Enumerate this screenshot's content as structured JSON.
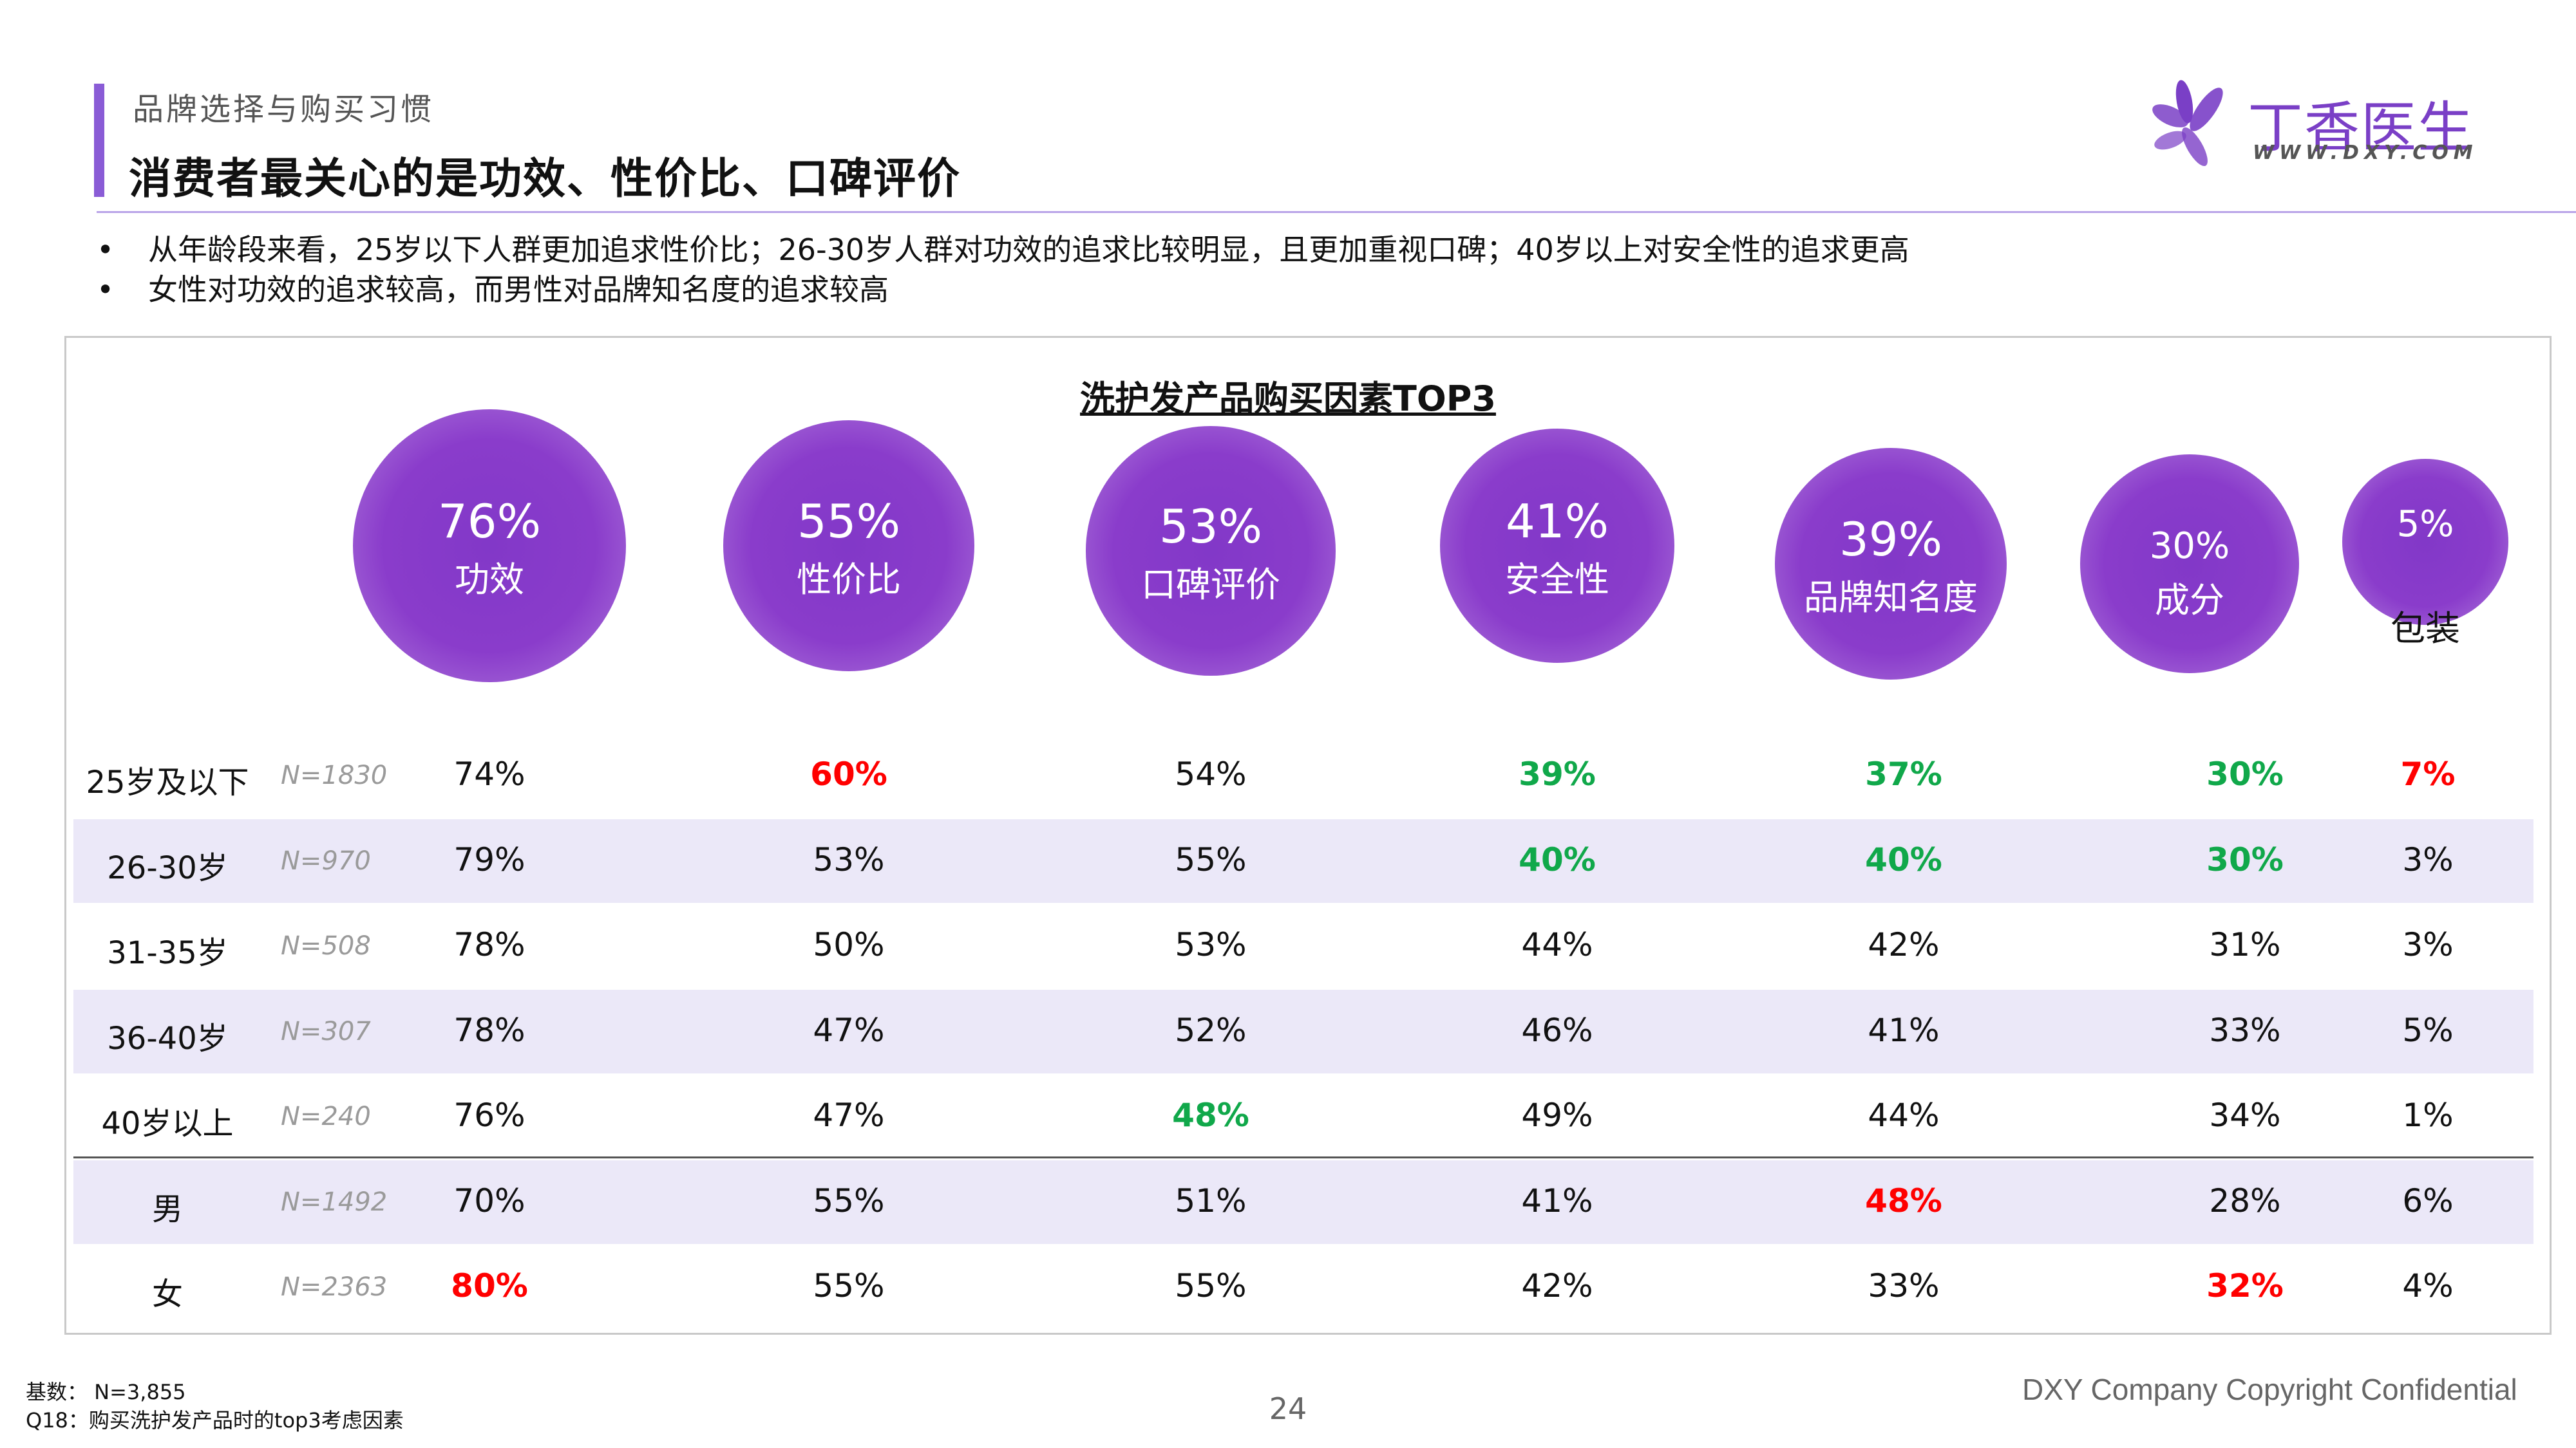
{
  "header": {
    "section_label": "品牌选择与购买习惯",
    "title": "消费者最关心的是功效、性价比、口碑评价",
    "logo_name": "丁香医生",
    "logo_url": "WWW.DXY.COM"
  },
  "bullets": [
    "从年龄段来看，25岁以下人群更加追求性价比；26-30岁人群对功效的追求比较明显，且更加重视口碑；40岁以上对安全性的追求更高",
    "女性对功效的追求较高，而男性对品牌知名度的追求较高"
  ],
  "colors": {
    "accent": "#8a5cd6",
    "bubble": "#8a3ccb",
    "high": "#ff0000",
    "low": "#10a84a",
    "band": "#ebe8f8"
  },
  "chart_data": {
    "type": "table",
    "title": "洗护发产品购买因素TOP3",
    "factors": [
      {
        "name": "功效",
        "overall": 76,
        "overall_label": "76%"
      },
      {
        "name": "性价比",
        "overall": 55,
        "overall_label": "55%"
      },
      {
        "name": "口碑评价",
        "overall": 53,
        "overall_label": "53%"
      },
      {
        "name": "安全性",
        "overall": 41,
        "overall_label": "41%"
      },
      {
        "name": "品牌知名度",
        "overall": 39,
        "overall_label": "39%"
      },
      {
        "name": "成分",
        "overall": 30,
        "overall_label": "30%"
      },
      {
        "name": "包装",
        "overall": 5,
        "overall_label": "5%"
      }
    ],
    "rows": [
      {
        "label": "25岁及以下",
        "n": "N=1830",
        "cells": [
          {
            "text": "74%",
            "hl": ""
          },
          {
            "text": "60%",
            "hl": "red"
          },
          {
            "text": "54%",
            "hl": ""
          },
          {
            "text": "39%",
            "hl": "green"
          },
          {
            "text": "37%",
            "hl": "green"
          },
          {
            "text": "30%",
            "hl": "green"
          },
          {
            "text": "7%",
            "hl": "red"
          }
        ]
      },
      {
        "label": "26-30岁",
        "n": "N=970",
        "cells": [
          {
            "text": "79%",
            "hl": ""
          },
          {
            "text": "53%",
            "hl": ""
          },
          {
            "text": "55%",
            "hl": ""
          },
          {
            "text": "40%",
            "hl": "green"
          },
          {
            "text": "40%",
            "hl": "green"
          },
          {
            "text": "30%",
            "hl": "green"
          },
          {
            "text": "3%",
            "hl": ""
          }
        ]
      },
      {
        "label": "31-35岁",
        "n": "N=508",
        "cells": [
          {
            "text": "78%",
            "hl": ""
          },
          {
            "text": "50%",
            "hl": ""
          },
          {
            "text": "53%",
            "hl": ""
          },
          {
            "text": "44%",
            "hl": ""
          },
          {
            "text": "42%",
            "hl": ""
          },
          {
            "text": "31%",
            "hl": ""
          },
          {
            "text": "3%",
            "hl": ""
          }
        ]
      },
      {
        "label": "36-40岁",
        "n": "N=307",
        "cells": [
          {
            "text": "78%",
            "hl": ""
          },
          {
            "text": "47%",
            "hl": ""
          },
          {
            "text": "52%",
            "hl": ""
          },
          {
            "text": "46%",
            "hl": ""
          },
          {
            "text": "41%",
            "hl": ""
          },
          {
            "text": "33%",
            "hl": ""
          },
          {
            "text": "5%",
            "hl": ""
          }
        ]
      },
      {
        "label": "40岁以上",
        "n": "N=240",
        "cells": [
          {
            "text": "76%",
            "hl": ""
          },
          {
            "text": "47%",
            "hl": ""
          },
          {
            "text": "48%",
            "hl": "green"
          },
          {
            "text": "49%",
            "hl": ""
          },
          {
            "text": "44%",
            "hl": ""
          },
          {
            "text": "34%",
            "hl": ""
          },
          {
            "text": "1%",
            "hl": ""
          }
        ]
      },
      {
        "label": "男",
        "n": "N=1492",
        "cells": [
          {
            "text": "70%",
            "hl": ""
          },
          {
            "text": "55%",
            "hl": ""
          },
          {
            "text": "51%",
            "hl": ""
          },
          {
            "text": "41%",
            "hl": ""
          },
          {
            "text": "48%",
            "hl": "red"
          },
          {
            "text": "28%",
            "hl": ""
          },
          {
            "text": "6%",
            "hl": ""
          }
        ]
      },
      {
        "label": "女",
        "n": "N=2363",
        "cells": [
          {
            "text": "80%",
            "hl": "red"
          },
          {
            "text": "55%",
            "hl": ""
          },
          {
            "text": "55%",
            "hl": ""
          },
          {
            "text": "42%",
            "hl": ""
          },
          {
            "text": "33%",
            "hl": ""
          },
          {
            "text": "32%",
            "hl": "red"
          },
          {
            "text": "4%",
            "hl": ""
          }
        ]
      }
    ]
  },
  "footer": {
    "base": "基数： N=3,855",
    "question": "Q18：购买洗护发产品时的top3考虑因素",
    "page": "24",
    "copyright": "DXY Company Copyright Confidential"
  }
}
